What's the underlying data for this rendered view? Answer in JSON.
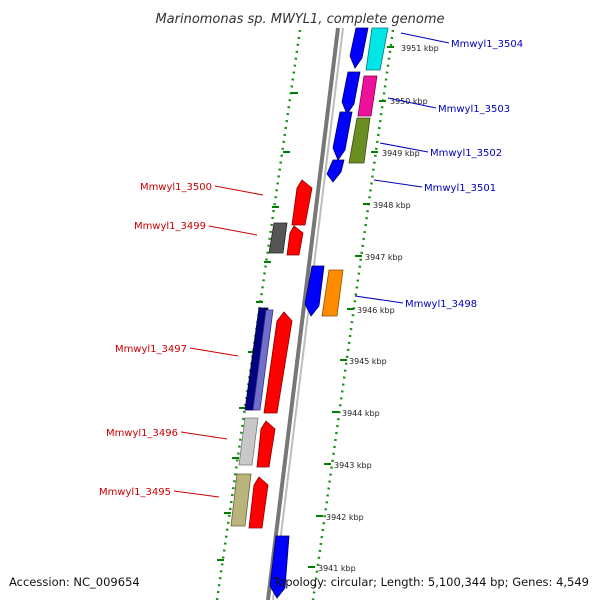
{
  "title": "Marinomonas sp. MWYL1, complete genome",
  "footer": {
    "accession": "Accession: NC_009654",
    "topology": "Topology: circular; Length: 5,100,344 bp; Genes: 4,549"
  },
  "ticks": [
    "3951 kbp",
    "3950 kbp",
    "3949 kbp",
    "3948 kbp",
    "3947 kbp",
    "3946 kbp",
    "3945 kbp",
    "3944 kbp",
    "3943 kbp",
    "3942 kbp",
    "3941 kbp"
  ],
  "genes_right": [
    "Mmwyl1_3504",
    "Mmwyl1_3503",
    "Mmwyl1_3502",
    "Mmwyl1_3501",
    "Mmwyl1_3498"
  ],
  "genes_left": [
    "Mmwyl1_3500",
    "Mmwyl1_3499",
    "Mmwyl1_3497",
    "Mmwyl1_3496",
    "Mmwyl1_3495"
  ],
  "colors": {
    "forward": "#ff0000",
    "reverse": "#0000ff",
    "label_forward": "#cc0000",
    "label_reverse": "#0000bb",
    "tick": "#008000",
    "backbone": "#888888",
    "cyan": "#00e5e5",
    "magenta": "#ee1199",
    "olive": "#6b8e23",
    "orange": "#ff8c00",
    "dark_gray": "#555555",
    "navy": "#000080",
    "slate": "#7070cc",
    "light_gray": "#c8c8c8",
    "khaki": "#b8b47c"
  }
}
